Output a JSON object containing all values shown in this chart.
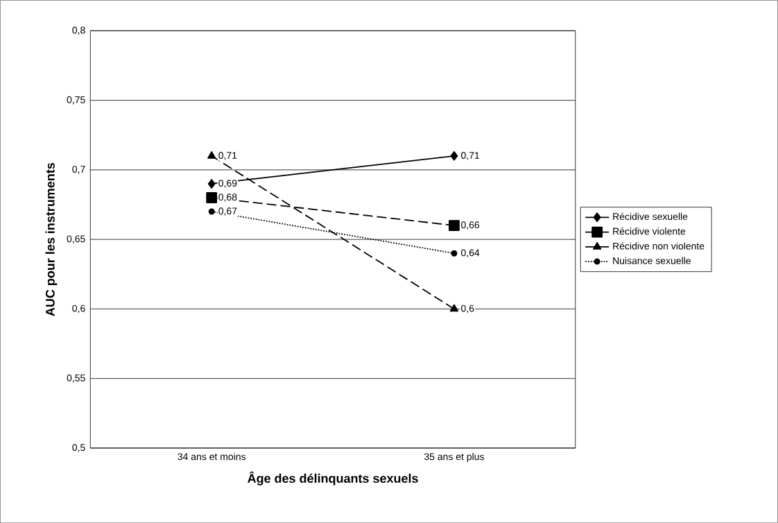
{
  "chart_data": {
    "type": "line",
    "xlabel": "Âge des délinquants sexuels",
    "ylabel": "AUC pour les instruments",
    "categories": [
      "34 ans et moins",
      "35 ans et plus"
    ],
    "series": [
      {
        "name": "Récidive sexuelle",
        "color": "#000000",
        "values": [
          0.69,
          0.71
        ],
        "marker": "diamond",
        "line_style": "solid",
        "value_labels": [
          "0,69",
          "0,71"
        ]
      },
      {
        "name": "Récidive violente",
        "color": "#000000",
        "values": [
          0.68,
          0.66
        ],
        "marker": "square",
        "line_style": "dashed",
        "value_labels": [
          "0,68",
          "0,66"
        ]
      },
      {
        "name": "Récidive non violente",
        "color": "#000000",
        "values": [
          0.71,
          0.6
        ],
        "marker": "triangle",
        "line_style": "dashed",
        "value_labels": [
          "0,71",
          "0,6"
        ]
      },
      {
        "name": "Nuisance sexuelle",
        "color": "#000000",
        "values": [
          0.67,
          0.64
        ],
        "marker": "circle",
        "line_style": "dotted",
        "value_labels": [
          "0,67",
          "0,64"
        ]
      }
    ],
    "ylim": [
      0.5,
      0.8
    ],
    "yticks": [
      {
        "value": 0.5,
        "label": "0,5"
      },
      {
        "value": 0.55,
        "label": "0,55"
      },
      {
        "value": 0.6,
        "label": "0,6"
      },
      {
        "value": 0.65,
        "label": "0,65"
      },
      {
        "value": 0.7,
        "label": "0,7"
      },
      {
        "value": 0.75,
        "label": "0,75"
      },
      {
        "value": 0.8,
        "label": "0,8"
      }
    ],
    "grid": "y",
    "legend": "right"
  }
}
